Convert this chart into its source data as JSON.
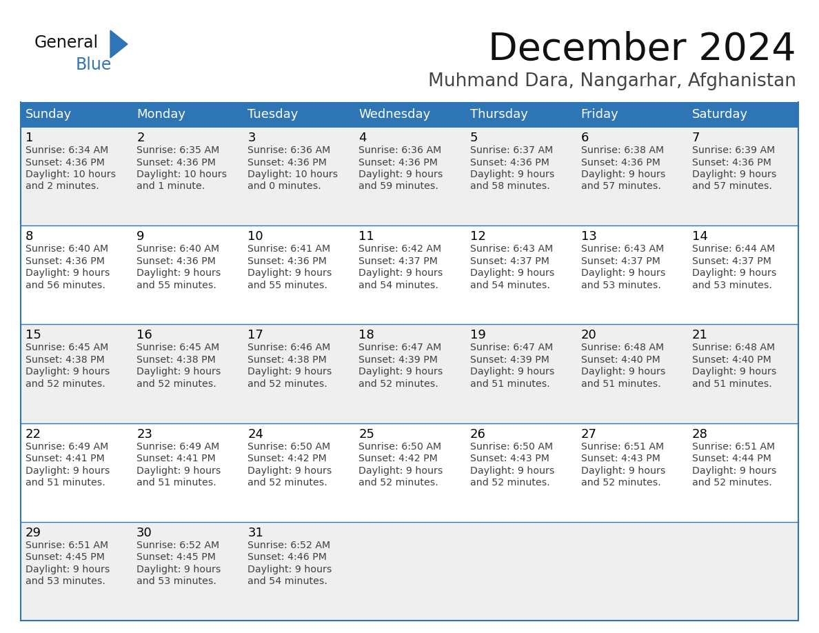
{
  "title": "December 2024",
  "subtitle": "Muhmand Dara, Nangarhar, Afghanistan",
  "header_bg_color": "#2E75B6",
  "header_text_color": "#FFFFFF",
  "day_names": [
    "Sunday",
    "Monday",
    "Tuesday",
    "Wednesday",
    "Thursday",
    "Friday",
    "Saturday"
  ],
  "row_colors": [
    "#EFEFEF",
    "#FFFFFF"
  ],
  "border_color": "#2E75B6",
  "day_num_color": "#000000",
  "cell_text_color": "#404040",
  "logo_general_color": "#1a1a1a",
  "logo_blue_color": "#2E75B6",
  "fig_width": 11.88,
  "fig_height": 9.18,
  "days": [
    {
      "date": 1,
      "col": 0,
      "row": 0,
      "sunrise": "6:34 AM",
      "sunset": "4:36 PM",
      "daylight_h": "10 hours",
      "daylight_m": "and 2 minutes."
    },
    {
      "date": 2,
      "col": 1,
      "row": 0,
      "sunrise": "6:35 AM",
      "sunset": "4:36 PM",
      "daylight_h": "10 hours",
      "daylight_m": "and 1 minute."
    },
    {
      "date": 3,
      "col": 2,
      "row": 0,
      "sunrise": "6:36 AM",
      "sunset": "4:36 PM",
      "daylight_h": "10 hours",
      "daylight_m": "and 0 minutes."
    },
    {
      "date": 4,
      "col": 3,
      "row": 0,
      "sunrise": "6:36 AM",
      "sunset": "4:36 PM",
      "daylight_h": "9 hours",
      "daylight_m": "and 59 minutes."
    },
    {
      "date": 5,
      "col": 4,
      "row": 0,
      "sunrise": "6:37 AM",
      "sunset": "4:36 PM",
      "daylight_h": "9 hours",
      "daylight_m": "and 58 minutes."
    },
    {
      "date": 6,
      "col": 5,
      "row": 0,
      "sunrise": "6:38 AM",
      "sunset": "4:36 PM",
      "daylight_h": "9 hours",
      "daylight_m": "and 57 minutes."
    },
    {
      "date": 7,
      "col": 6,
      "row": 0,
      "sunrise": "6:39 AM",
      "sunset": "4:36 PM",
      "daylight_h": "9 hours",
      "daylight_m": "and 57 minutes."
    },
    {
      "date": 8,
      "col": 0,
      "row": 1,
      "sunrise": "6:40 AM",
      "sunset": "4:36 PM",
      "daylight_h": "9 hours",
      "daylight_m": "and 56 minutes."
    },
    {
      "date": 9,
      "col": 1,
      "row": 1,
      "sunrise": "6:40 AM",
      "sunset": "4:36 PM",
      "daylight_h": "9 hours",
      "daylight_m": "and 55 minutes."
    },
    {
      "date": 10,
      "col": 2,
      "row": 1,
      "sunrise": "6:41 AM",
      "sunset": "4:36 PM",
      "daylight_h": "9 hours",
      "daylight_m": "and 55 minutes."
    },
    {
      "date": 11,
      "col": 3,
      "row": 1,
      "sunrise": "6:42 AM",
      "sunset": "4:37 PM",
      "daylight_h": "9 hours",
      "daylight_m": "and 54 minutes."
    },
    {
      "date": 12,
      "col": 4,
      "row": 1,
      "sunrise": "6:43 AM",
      "sunset": "4:37 PM",
      "daylight_h": "9 hours",
      "daylight_m": "and 54 minutes."
    },
    {
      "date": 13,
      "col": 5,
      "row": 1,
      "sunrise": "6:43 AM",
      "sunset": "4:37 PM",
      "daylight_h": "9 hours",
      "daylight_m": "and 53 minutes."
    },
    {
      "date": 14,
      "col": 6,
      "row": 1,
      "sunrise": "6:44 AM",
      "sunset": "4:37 PM",
      "daylight_h": "9 hours",
      "daylight_m": "and 53 minutes."
    },
    {
      "date": 15,
      "col": 0,
      "row": 2,
      "sunrise": "6:45 AM",
      "sunset": "4:38 PM",
      "daylight_h": "9 hours",
      "daylight_m": "and 52 minutes."
    },
    {
      "date": 16,
      "col": 1,
      "row": 2,
      "sunrise": "6:45 AM",
      "sunset": "4:38 PM",
      "daylight_h": "9 hours",
      "daylight_m": "and 52 minutes."
    },
    {
      "date": 17,
      "col": 2,
      "row": 2,
      "sunrise": "6:46 AM",
      "sunset": "4:38 PM",
      "daylight_h": "9 hours",
      "daylight_m": "and 52 minutes."
    },
    {
      "date": 18,
      "col": 3,
      "row": 2,
      "sunrise": "6:47 AM",
      "sunset": "4:39 PM",
      "daylight_h": "9 hours",
      "daylight_m": "and 52 minutes."
    },
    {
      "date": 19,
      "col": 4,
      "row": 2,
      "sunrise": "6:47 AM",
      "sunset": "4:39 PM",
      "daylight_h": "9 hours",
      "daylight_m": "and 51 minutes."
    },
    {
      "date": 20,
      "col": 5,
      "row": 2,
      "sunrise": "6:48 AM",
      "sunset": "4:40 PM",
      "daylight_h": "9 hours",
      "daylight_m": "and 51 minutes."
    },
    {
      "date": 21,
      "col": 6,
      "row": 2,
      "sunrise": "6:48 AM",
      "sunset": "4:40 PM",
      "daylight_h": "9 hours",
      "daylight_m": "and 51 minutes."
    },
    {
      "date": 22,
      "col": 0,
      "row": 3,
      "sunrise": "6:49 AM",
      "sunset": "4:41 PM",
      "daylight_h": "9 hours",
      "daylight_m": "and 51 minutes."
    },
    {
      "date": 23,
      "col": 1,
      "row": 3,
      "sunrise": "6:49 AM",
      "sunset": "4:41 PM",
      "daylight_h": "9 hours",
      "daylight_m": "and 51 minutes."
    },
    {
      "date": 24,
      "col": 2,
      "row": 3,
      "sunrise": "6:50 AM",
      "sunset": "4:42 PM",
      "daylight_h": "9 hours",
      "daylight_m": "and 52 minutes."
    },
    {
      "date": 25,
      "col": 3,
      "row": 3,
      "sunrise": "6:50 AM",
      "sunset": "4:42 PM",
      "daylight_h": "9 hours",
      "daylight_m": "and 52 minutes."
    },
    {
      "date": 26,
      "col": 4,
      "row": 3,
      "sunrise": "6:50 AM",
      "sunset": "4:43 PM",
      "daylight_h": "9 hours",
      "daylight_m": "and 52 minutes."
    },
    {
      "date": 27,
      "col": 5,
      "row": 3,
      "sunrise": "6:51 AM",
      "sunset": "4:43 PM",
      "daylight_h": "9 hours",
      "daylight_m": "and 52 minutes."
    },
    {
      "date": 28,
      "col": 6,
      "row": 3,
      "sunrise": "6:51 AM",
      "sunset": "4:44 PM",
      "daylight_h": "9 hours",
      "daylight_m": "and 52 minutes."
    },
    {
      "date": 29,
      "col": 0,
      "row": 4,
      "sunrise": "6:51 AM",
      "sunset": "4:45 PM",
      "daylight_h": "9 hours",
      "daylight_m": "and 53 minutes."
    },
    {
      "date": 30,
      "col": 1,
      "row": 4,
      "sunrise": "6:52 AM",
      "sunset": "4:45 PM",
      "daylight_h": "9 hours",
      "daylight_m": "and 53 minutes."
    },
    {
      "date": 31,
      "col": 2,
      "row": 4,
      "sunrise": "6:52 AM",
      "sunset": "4:46 PM",
      "daylight_h": "9 hours",
      "daylight_m": "and 54 minutes."
    }
  ]
}
